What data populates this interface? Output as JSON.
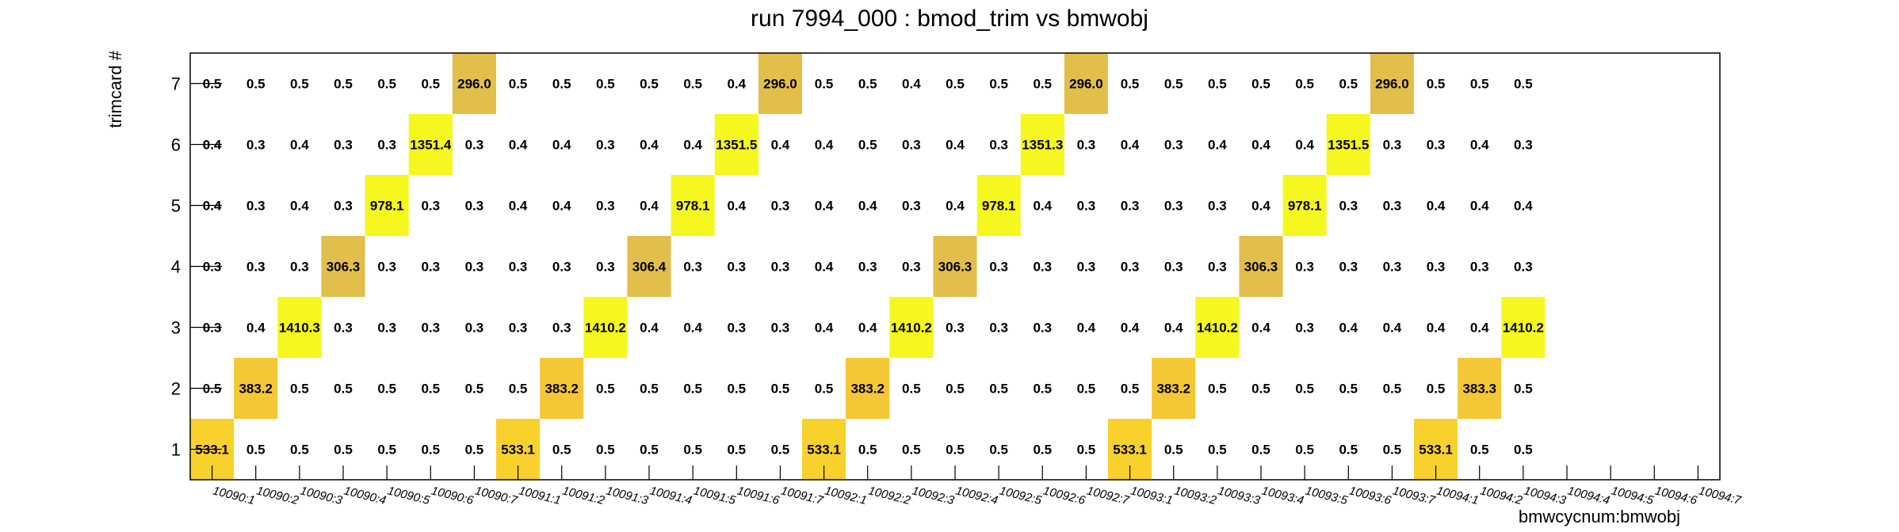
{
  "chart_data": {
    "type": "heatmap",
    "title": "run 7994_000 : bmod_trim vs bmwobj",
    "xlabel": "bmwcycnum:bmwobj",
    "ylabel": "trimcard #",
    "x_categories": [
      "10090:1",
      "10090:2",
      "10090:3",
      "10090:4",
      "10090:5",
      "10090:6",
      "10090:7",
      "10091:1",
      "10091:2",
      "10091:3",
      "10091:4",
      "10091:5",
      "10091:6",
      "10091:7",
      "10092:1",
      "10092:2",
      "10092:3",
      "10092:4",
      "10092:5",
      "10092:6",
      "10092:7",
      "10093:1",
      "10093:2",
      "10093:3",
      "10093:4",
      "10093:5",
      "10093:6",
      "10093:7",
      "10094:1",
      "10094:2",
      "10094:3",
      "10094:4",
      "10094:5",
      "10094:6",
      "10094:7"
    ],
    "y_categories": [
      "1",
      "2",
      "3",
      "4",
      "5",
      "6",
      "7"
    ],
    "values": [
      [
        "533.1",
        "0.5",
        "0.5",
        "0.5",
        "0.5",
        "0.5",
        "0.5",
        "533.1",
        "0.5",
        "0.5",
        "0.5",
        "0.5",
        "0.5",
        "0.5",
        "533.1",
        "0.5",
        "0.5",
        "0.5",
        "0.5",
        "0.5",
        "0.5",
        "533.1",
        "0.5",
        "0.5",
        "0.5",
        "0.5",
        "0.5",
        "0.5",
        "533.1",
        "0.5",
        "0.5",
        null,
        null,
        null,
        null
      ],
      [
        "0.5",
        "383.2",
        "0.5",
        "0.5",
        "0.5",
        "0.5",
        "0.5",
        "0.5",
        "383.2",
        "0.5",
        "0.5",
        "0.5",
        "0.5",
        "0.5",
        "0.5",
        "383.2",
        "0.5",
        "0.5",
        "0.5",
        "0.5",
        "0.5",
        "0.5",
        "383.2",
        "0.5",
        "0.5",
        "0.5",
        "0.5",
        "0.5",
        "0.5",
        "383.3",
        "0.5",
        null,
        null,
        null,
        null
      ],
      [
        "0.3",
        "0.4",
        "1410.3",
        "0.3",
        "0.3",
        "0.3",
        "0.3",
        "0.3",
        "0.3",
        "1410.2",
        "0.4",
        "0.4",
        "0.3",
        "0.3",
        "0.4",
        "0.4",
        "1410.2",
        "0.3",
        "0.3",
        "0.3",
        "0.4",
        "0.4",
        "0.4",
        "1410.2",
        "0.4",
        "0.3",
        "0.4",
        "0.4",
        "0.4",
        "0.4",
        "1410.2",
        null,
        null,
        null,
        null
      ],
      [
        "0.3",
        "0.3",
        "0.3",
        "306.3",
        "0.3",
        "0.3",
        "0.3",
        "0.3",
        "0.3",
        "0.3",
        "306.4",
        "0.3",
        "0.3",
        "0.3",
        "0.4",
        "0.3",
        "0.3",
        "306.3",
        "0.3",
        "0.3",
        "0.3",
        "0.3",
        "0.3",
        "0.3",
        "306.3",
        "0.3",
        "0.3",
        "0.3",
        "0.3",
        "0.3",
        "0.3",
        null,
        null,
        null,
        null
      ],
      [
        "0.4",
        "0.3",
        "0.4",
        "0.3",
        "978.1",
        "0.3",
        "0.3",
        "0.4",
        "0.4",
        "0.3",
        "0.4",
        "978.1",
        "0.4",
        "0.3",
        "0.4",
        "0.4",
        "0.3",
        "0.4",
        "978.1",
        "0.4",
        "0.3",
        "0.3",
        "0.3",
        "0.3",
        "0.4",
        "978.1",
        "0.3",
        "0.3",
        "0.4",
        "0.4",
        "0.4",
        null,
        null,
        null,
        null
      ],
      [
        "0.4",
        "0.3",
        "0.4",
        "0.3",
        "0.3",
        "1351.4",
        "0.3",
        "0.4",
        "0.4",
        "0.3",
        "0.4",
        "0.4",
        "1351.5",
        "0.4",
        "0.4",
        "0.5",
        "0.3",
        "0.4",
        "0.3",
        "1351.3",
        "0.3",
        "0.4",
        "0.3",
        "0.4",
        "0.4",
        "0.4",
        "1351.5",
        "0.3",
        "0.3",
        "0.4",
        "0.3",
        null,
        null,
        null,
        null
      ],
      [
        "0.5",
        "0.5",
        "0.5",
        "0.5",
        "0.5",
        "0.5",
        "296.0",
        "0.5",
        "0.5",
        "0.5",
        "0.5",
        "0.5",
        "0.4",
        "296.0",
        "0.5",
        "0.5",
        "0.4",
        "0.5",
        "0.5",
        "0.5",
        "296.0",
        "0.5",
        "0.5",
        "0.5",
        "0.5",
        "0.5",
        "0.5",
        "296.0",
        "0.5",
        "0.5",
        "0.5",
        null,
        null,
        null,
        null
      ]
    ],
    "color_scale": [
      {
        "min": 250,
        "max": 320,
        "color": "#e2be4a"
      },
      {
        "min": 320,
        "max": 420,
        "color": "#f6c735"
      },
      {
        "min": 420,
        "max": 600,
        "color": "#f9d12c"
      },
      {
        "min": 600,
        "max": 2000,
        "color": "#f6f71e"
      }
    ]
  }
}
